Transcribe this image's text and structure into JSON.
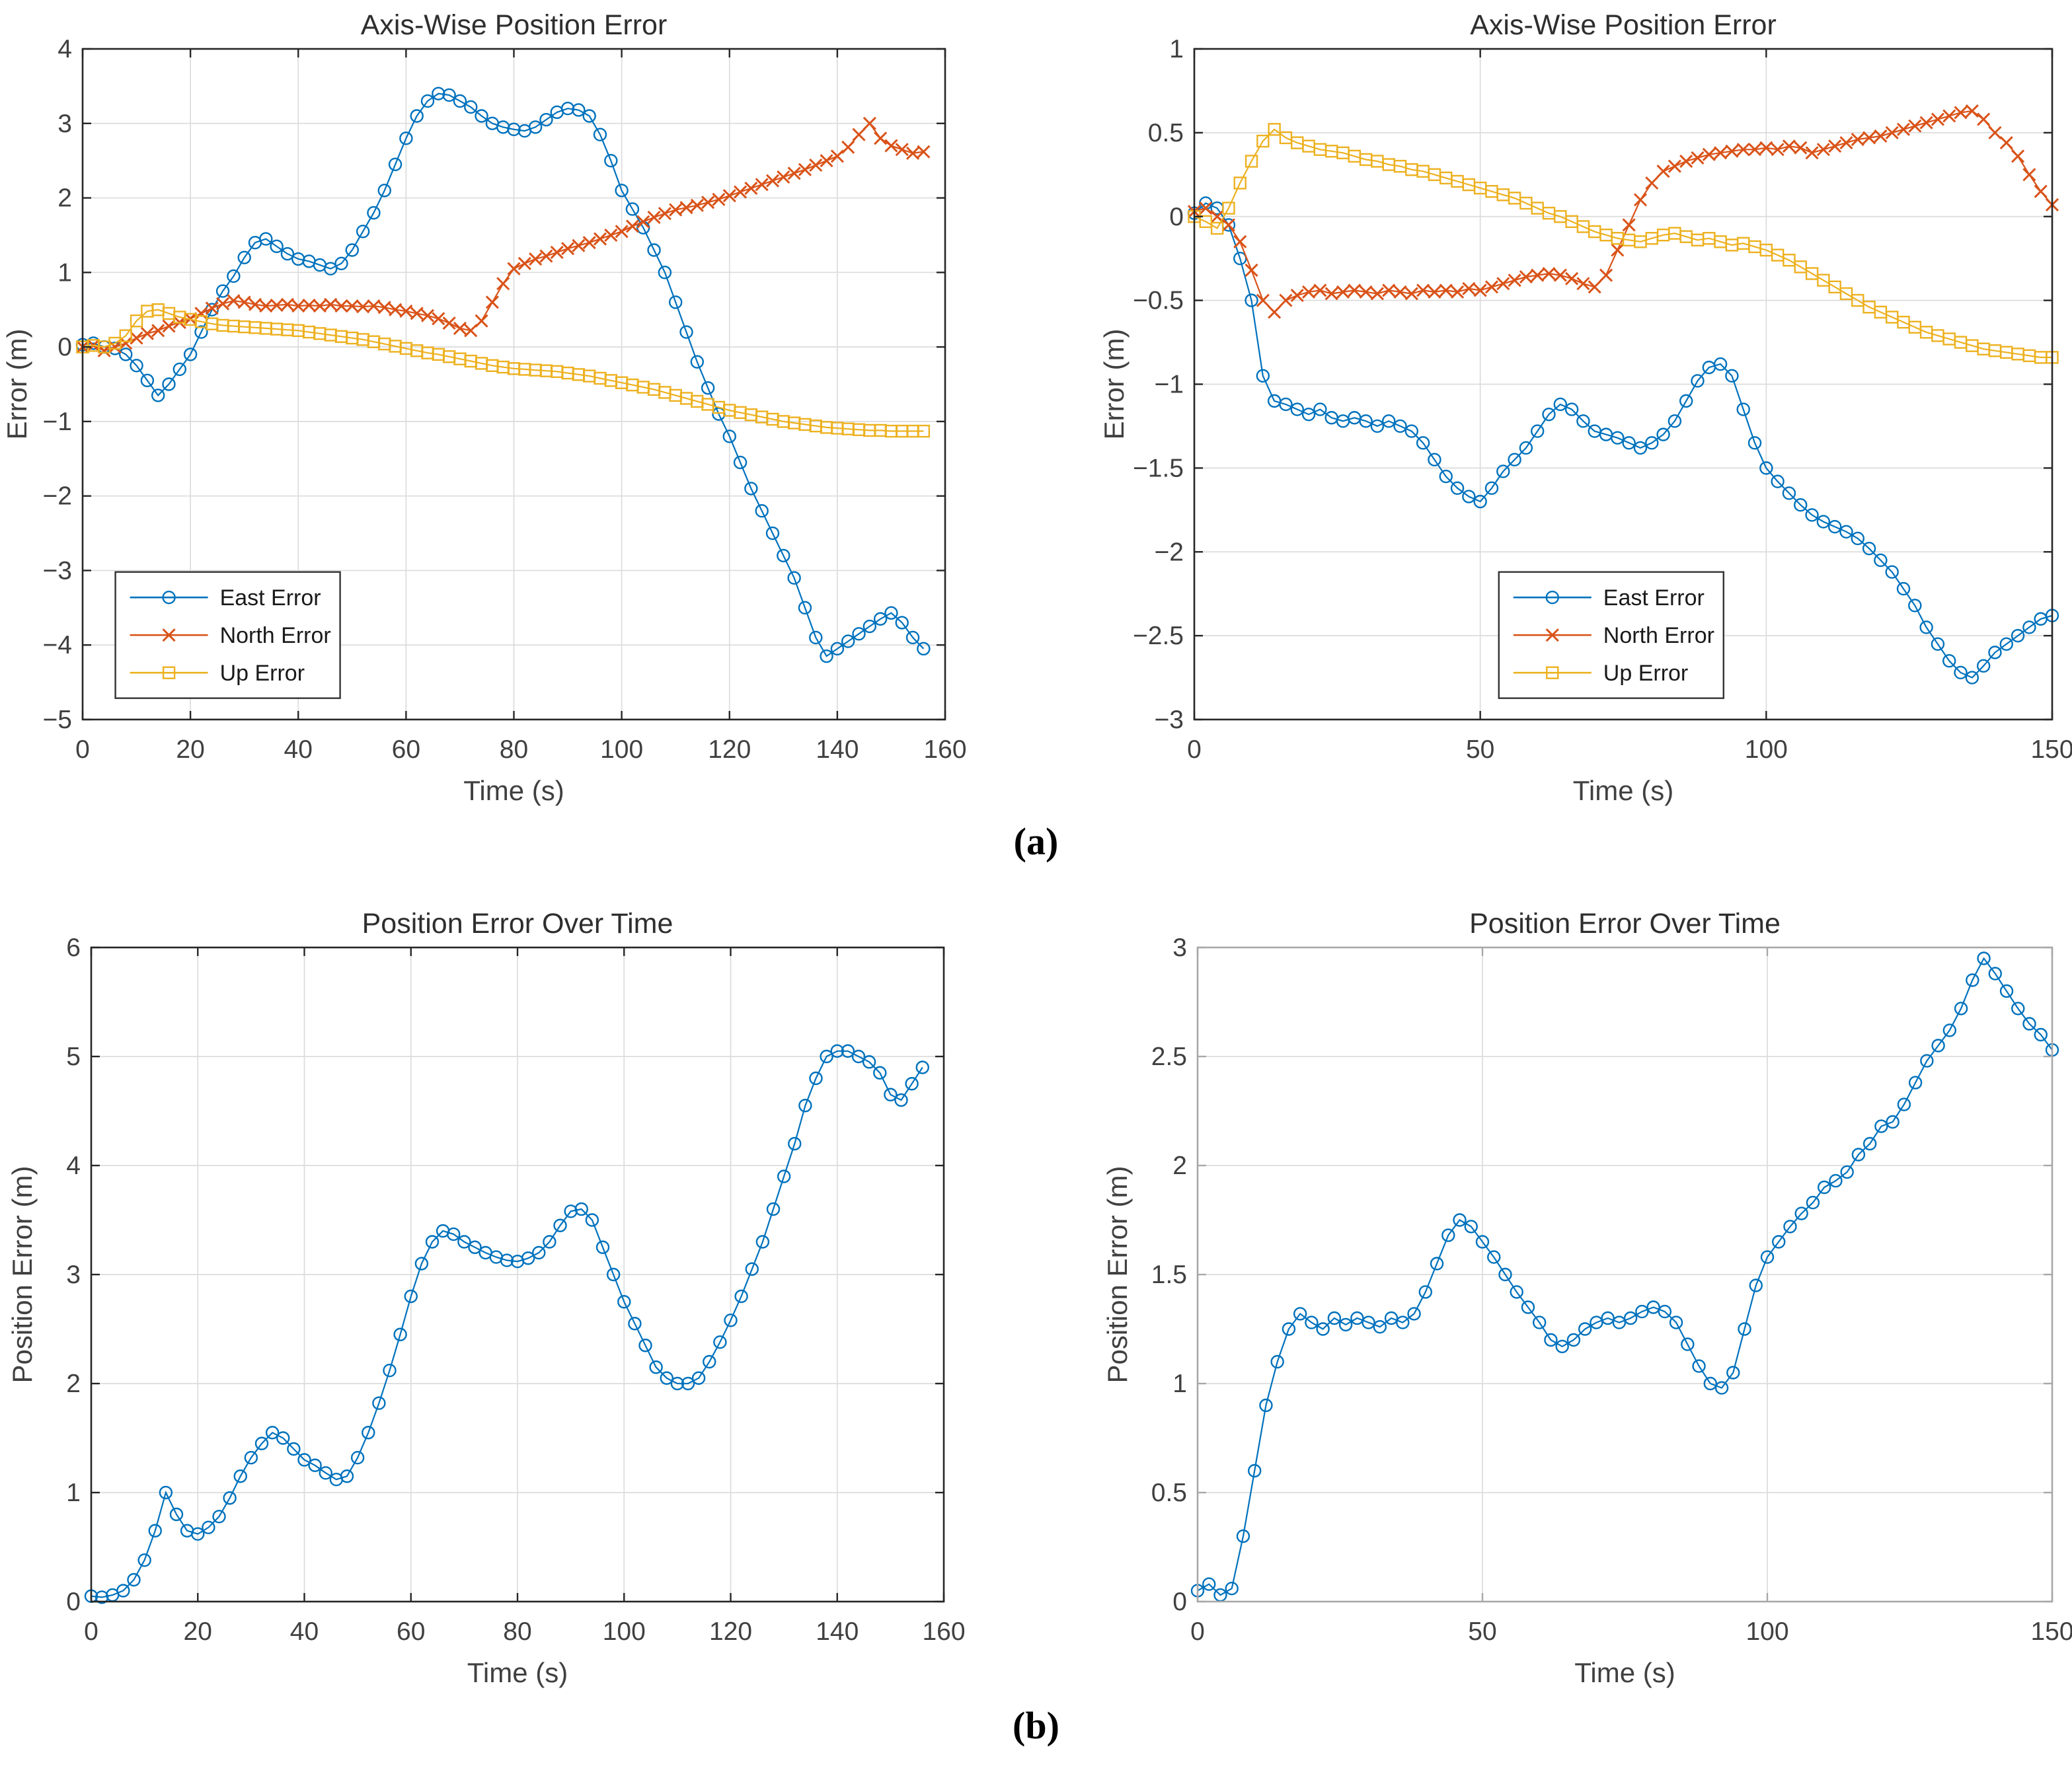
{
  "page": {
    "background": "#ffffff"
  },
  "panels": {
    "a_label": "(a)",
    "b_label": "(b)"
  },
  "palette": {
    "east": "#0072BD",
    "north": "#D95319",
    "up": "#EDB120",
    "grid": "#dcdcdc",
    "axis_dark": "#262626",
    "axis_gray": "#a8a8a8",
    "tick_text": "#404040",
    "title_text": "#2e2e2e",
    "legend_border": "#333333"
  },
  "chart_data": [
    {
      "id": "axiswise-left",
      "type": "line",
      "title": "Axis-Wise Position Error",
      "xlabel": "Time (s)",
      "ylabel": "Error (m)",
      "xlim": [
        0,
        160
      ],
      "ylim": [
        -5,
        4
      ],
      "xticks": [
        0,
        20,
        40,
        60,
        80,
        100,
        120,
        140,
        160
      ],
      "yticks": [
        -5,
        -4,
        -3,
        -2,
        -1,
        0,
        1,
        2,
        3,
        4
      ],
      "grid": true,
      "axis_style": "dark",
      "legend": {
        "show": true,
        "position": "lower-left"
      },
      "x": [
        0,
        2,
        4,
        6,
        8,
        10,
        12,
        14,
        16,
        18,
        20,
        22,
        24,
        26,
        28,
        30,
        32,
        34,
        36,
        38,
        40,
        42,
        44,
        46,
        48,
        50,
        52,
        54,
        56,
        58,
        60,
        62,
        64,
        66,
        68,
        70,
        72,
        74,
        76,
        78,
        80,
        82,
        84,
        86,
        88,
        90,
        92,
        94,
        96,
        98,
        100,
        102,
        104,
        106,
        108,
        110,
        112,
        114,
        116,
        118,
        120,
        122,
        124,
        126,
        128,
        130,
        132,
        134,
        136,
        138,
        140,
        142,
        144,
        146,
        148,
        150,
        152,
        154,
        156
      ],
      "series": [
        {
          "name": "East Error",
          "color_key": "east",
          "marker": "circle",
          "y": [
            0.03,
            0.05,
            0.0,
            -0.02,
            -0.1,
            -0.25,
            -0.45,
            -0.65,
            -0.5,
            -0.3,
            -0.1,
            0.2,
            0.5,
            0.75,
            0.95,
            1.2,
            1.4,
            1.45,
            1.35,
            1.25,
            1.18,
            1.15,
            1.1,
            1.05,
            1.12,
            1.3,
            1.55,
            1.8,
            2.1,
            2.45,
            2.8,
            3.1,
            3.3,
            3.4,
            3.38,
            3.3,
            3.22,
            3.1,
            3.0,
            2.95,
            2.92,
            2.9,
            2.95,
            3.05,
            3.15,
            3.2,
            3.18,
            3.1,
            2.85,
            2.5,
            2.1,
            1.85,
            1.6,
            1.3,
            1.0,
            0.6,
            0.2,
            -0.2,
            -0.55,
            -0.9,
            -1.2,
            -1.55,
            -1.9,
            -2.2,
            -2.5,
            -2.8,
            -3.1,
            -3.5,
            -3.9,
            -4.15,
            -4.05,
            -3.95,
            -3.85,
            -3.75,
            -3.65,
            -3.57,
            -3.7,
            -3.9,
            -4.05
          ]
        },
        {
          "name": "North Error",
          "color_key": "north",
          "marker": "x",
          "y": [
            0.0,
            0.02,
            -0.05,
            0.0,
            0.05,
            0.12,
            0.18,
            0.22,
            0.28,
            0.33,
            0.38,
            0.45,
            0.52,
            0.58,
            0.62,
            0.6,
            0.57,
            0.55,
            0.56,
            0.57,
            0.55,
            0.56,
            0.55,
            0.57,
            0.55,
            0.55,
            0.54,
            0.55,
            0.53,
            0.5,
            0.48,
            0.45,
            0.42,
            0.38,
            0.32,
            0.25,
            0.22,
            0.35,
            0.6,
            0.85,
            1.05,
            1.12,
            1.18,
            1.22,
            1.27,
            1.32,
            1.36,
            1.4,
            1.45,
            1.5,
            1.55,
            1.62,
            1.68,
            1.74,
            1.79,
            1.84,
            1.87,
            1.9,
            1.94,
            1.98,
            2.03,
            2.08,
            2.13,
            2.18,
            2.23,
            2.28,
            2.33,
            2.38,
            2.44,
            2.5,
            2.56,
            2.68,
            2.85,
            3.0,
            2.8,
            2.7,
            2.65,
            2.6,
            2.62
          ]
        },
        {
          "name": "Up Error",
          "color_key": "up",
          "marker": "square",
          "y": [
            0.0,
            0.02,
            0.0,
            0.05,
            0.15,
            0.35,
            0.48,
            0.5,
            0.45,
            0.4,
            0.37,
            0.34,
            0.31,
            0.29,
            0.28,
            0.27,
            0.26,
            0.25,
            0.24,
            0.23,
            0.22,
            0.2,
            0.18,
            0.16,
            0.14,
            0.12,
            0.1,
            0.07,
            0.04,
            0.01,
            -0.02,
            -0.05,
            -0.08,
            -0.1,
            -0.13,
            -0.16,
            -0.19,
            -0.22,
            -0.25,
            -0.27,
            -0.29,
            -0.3,
            -0.31,
            -0.32,
            -0.33,
            -0.35,
            -0.37,
            -0.39,
            -0.42,
            -0.45,
            -0.48,
            -0.51,
            -0.54,
            -0.57,
            -0.61,
            -0.65,
            -0.69,
            -0.73,
            -0.77,
            -0.81,
            -0.85,
            -0.88,
            -0.91,
            -0.94,
            -0.97,
            -1.0,
            -1.02,
            -1.04,
            -1.06,
            -1.08,
            -1.09,
            -1.1,
            -1.11,
            -1.12,
            -1.12,
            -1.13,
            -1.13,
            -1.13,
            -1.13
          ]
        }
      ]
    },
    {
      "id": "axiswise-right",
      "type": "line",
      "title": "Axis-Wise Position Error",
      "xlabel": "Time (s)",
      "ylabel": "Error (m)",
      "xlim": [
        0,
        150
      ],
      "ylim": [
        -3,
        1
      ],
      "xticks": [
        0,
        50,
        100,
        150
      ],
      "yticks": [
        -3,
        -2.5,
        -2,
        -1.5,
        -1,
        -0.5,
        0,
        0.5,
        1
      ],
      "grid": true,
      "axis_style": "dark",
      "legend": {
        "show": true,
        "position": "lower-center"
      },
      "x": [
        0,
        2,
        4,
        6,
        8,
        10,
        12,
        14,
        16,
        18,
        20,
        22,
        24,
        26,
        28,
        30,
        32,
        34,
        36,
        38,
        40,
        42,
        44,
        46,
        48,
        50,
        52,
        54,
        56,
        58,
        60,
        62,
        64,
        66,
        68,
        70,
        72,
        74,
        76,
        78,
        80,
        82,
        84,
        86,
        88,
        90,
        92,
        94,
        96,
        98,
        100,
        102,
        104,
        106,
        108,
        110,
        112,
        114,
        116,
        118,
        120,
        122,
        124,
        126,
        128,
        130,
        132,
        134,
        136,
        138,
        140,
        142,
        144,
        146,
        148,
        150
      ],
      "series": [
        {
          "name": "East Error",
          "color_key": "east",
          "marker": "circle",
          "y": [
            0.02,
            0.08,
            0.05,
            -0.05,
            -0.25,
            -0.5,
            -0.95,
            -1.1,
            -1.12,
            -1.15,
            -1.18,
            -1.15,
            -1.2,
            -1.22,
            -1.2,
            -1.22,
            -1.25,
            -1.22,
            -1.25,
            -1.28,
            -1.35,
            -1.45,
            -1.55,
            -1.62,
            -1.67,
            -1.7,
            -1.62,
            -1.52,
            -1.45,
            -1.38,
            -1.28,
            -1.18,
            -1.12,
            -1.15,
            -1.22,
            -1.28,
            -1.3,
            -1.32,
            -1.35,
            -1.38,
            -1.35,
            -1.3,
            -1.22,
            -1.1,
            -0.98,
            -0.9,
            -0.88,
            -0.95,
            -1.15,
            -1.35,
            -1.5,
            -1.58,
            -1.65,
            -1.72,
            -1.78,
            -1.82,
            -1.85,
            -1.88,
            -1.92,
            -1.98,
            -2.05,
            -2.12,
            -2.22,
            -2.32,
            -2.45,
            -2.55,
            -2.65,
            -2.72,
            -2.75,
            -2.68,
            -2.6,
            -2.55,
            -2.5,
            -2.45,
            -2.4,
            -2.38
          ]
        },
        {
          "name": "North Error",
          "color_key": "north",
          "marker": "x",
          "y": [
            0.03,
            0.05,
            0.0,
            -0.05,
            -0.15,
            -0.32,
            -0.5,
            -0.57,
            -0.5,
            -0.47,
            -0.45,
            -0.44,
            -0.46,
            -0.45,
            -0.44,
            -0.45,
            -0.46,
            -0.44,
            -0.45,
            -0.46,
            -0.44,
            -0.45,
            -0.44,
            -0.45,
            -0.43,
            -0.44,
            -0.42,
            -0.4,
            -0.38,
            -0.36,
            -0.35,
            -0.34,
            -0.35,
            -0.37,
            -0.4,
            -0.42,
            -0.35,
            -0.2,
            -0.05,
            0.1,
            0.2,
            0.27,
            0.3,
            0.33,
            0.35,
            0.37,
            0.38,
            0.39,
            0.4,
            0.4,
            0.41,
            0.4,
            0.42,
            0.41,
            0.38,
            0.4,
            0.42,
            0.44,
            0.46,
            0.47,
            0.48,
            0.5,
            0.52,
            0.54,
            0.56,
            0.58,
            0.6,
            0.62,
            0.63,
            0.58,
            0.5,
            0.44,
            0.36,
            0.25,
            0.15,
            0.07
          ]
        },
        {
          "name": "Up Error",
          "color_key": "up",
          "marker": "square",
          "y": [
            0.0,
            -0.03,
            -0.07,
            0.05,
            0.2,
            0.33,
            0.45,
            0.52,
            0.47,
            0.44,
            0.42,
            0.4,
            0.39,
            0.38,
            0.36,
            0.34,
            0.33,
            0.31,
            0.3,
            0.28,
            0.27,
            0.25,
            0.23,
            0.21,
            0.19,
            0.17,
            0.15,
            0.13,
            0.11,
            0.08,
            0.05,
            0.02,
            0.0,
            -0.03,
            -0.06,
            -0.09,
            -0.11,
            -0.13,
            -0.14,
            -0.15,
            -0.13,
            -0.11,
            -0.1,
            -0.12,
            -0.14,
            -0.13,
            -0.15,
            -0.17,
            -0.16,
            -0.18,
            -0.2,
            -0.23,
            -0.26,
            -0.3,
            -0.34,
            -0.38,
            -0.42,
            -0.46,
            -0.5,
            -0.54,
            -0.57,
            -0.6,
            -0.63,
            -0.66,
            -0.69,
            -0.71,
            -0.73,
            -0.75,
            -0.77,
            -0.79,
            -0.8,
            -0.81,
            -0.82,
            -0.83,
            -0.84,
            -0.84
          ]
        }
      ]
    },
    {
      "id": "poserr-left",
      "type": "line",
      "title": "Position Error Over Time",
      "xlabel": "Time (s)",
      "ylabel": "Position Error (m)",
      "xlim": [
        0,
        160
      ],
      "ylim": [
        0,
        6
      ],
      "xticks": [
        0,
        20,
        40,
        60,
        80,
        100,
        120,
        140,
        160
      ],
      "yticks": [
        0,
        1,
        2,
        3,
        4,
        5,
        6
      ],
      "grid": true,
      "axis_style": "dark",
      "legend": {
        "show": false,
        "position": "none"
      },
      "x": [
        0,
        2,
        4,
        6,
        8,
        10,
        12,
        14,
        16,
        18,
        20,
        22,
        24,
        26,
        28,
        30,
        32,
        34,
        36,
        38,
        40,
        42,
        44,
        46,
        48,
        50,
        52,
        54,
        56,
        58,
        60,
        62,
        64,
        66,
        68,
        70,
        72,
        74,
        76,
        78,
        80,
        82,
        84,
        86,
        88,
        90,
        92,
        94,
        96,
        98,
        100,
        102,
        104,
        106,
        108,
        110,
        112,
        114,
        116,
        118,
        120,
        122,
        124,
        126,
        128,
        130,
        132,
        134,
        136,
        138,
        140,
        142,
        144,
        146,
        148,
        150,
        152,
        154,
        156
      ],
      "series": [
        {
          "name": "Position Error",
          "color_key": "east",
          "marker": "circle",
          "y": [
            0.05,
            0.04,
            0.06,
            0.1,
            0.2,
            0.38,
            0.65,
            1.0,
            0.8,
            0.65,
            0.62,
            0.68,
            0.78,
            0.95,
            1.15,
            1.32,
            1.45,
            1.55,
            1.5,
            1.4,
            1.3,
            1.25,
            1.18,
            1.12,
            1.15,
            1.32,
            1.55,
            1.82,
            2.12,
            2.45,
            2.8,
            3.1,
            3.3,
            3.4,
            3.37,
            3.3,
            3.25,
            3.2,
            3.16,
            3.13,
            3.12,
            3.15,
            3.2,
            3.3,
            3.45,
            3.58,
            3.6,
            3.5,
            3.25,
            3.0,
            2.75,
            2.55,
            2.35,
            2.15,
            2.05,
            2.0,
            2.0,
            2.05,
            2.2,
            2.38,
            2.58,
            2.8,
            3.05,
            3.3,
            3.6,
            3.9,
            4.2,
            4.55,
            4.8,
            5.0,
            5.05,
            5.05,
            5.0,
            4.95,
            4.85,
            4.65,
            4.6,
            4.75,
            4.9
          ]
        }
      ]
    },
    {
      "id": "poserr-right",
      "type": "line",
      "title": "Position Error Over Time",
      "xlabel": "Time (s)",
      "ylabel": "Position Error (m)",
      "xlim": [
        0,
        150
      ],
      "ylim": [
        0,
        3
      ],
      "xticks": [
        0,
        50,
        100,
        150
      ],
      "yticks": [
        0,
        0.5,
        1,
        1.5,
        2,
        2.5,
        3
      ],
      "grid": true,
      "axis_style": "gray",
      "legend": {
        "show": false,
        "position": "none"
      },
      "x": [
        0,
        2,
        4,
        6,
        8,
        10,
        12,
        14,
        16,
        18,
        20,
        22,
        24,
        26,
        28,
        30,
        32,
        34,
        36,
        38,
        40,
        42,
        44,
        46,
        48,
        50,
        52,
        54,
        56,
        58,
        60,
        62,
        64,
        66,
        68,
        70,
        72,
        74,
        76,
        78,
        80,
        82,
        84,
        86,
        88,
        90,
        92,
        94,
        96,
        98,
        100,
        102,
        104,
        106,
        108,
        110,
        112,
        114,
        116,
        118,
        120,
        122,
        124,
        126,
        128,
        130,
        132,
        134,
        136,
        138,
        140,
        142,
        144,
        146,
        148,
        150
      ],
      "series": [
        {
          "name": "Position Error",
          "color_key": "east",
          "marker": "circle",
          "y": [
            0.05,
            0.08,
            0.03,
            0.06,
            0.3,
            0.6,
            0.9,
            1.1,
            1.25,
            1.32,
            1.28,
            1.25,
            1.3,
            1.27,
            1.3,
            1.28,
            1.26,
            1.3,
            1.28,
            1.32,
            1.42,
            1.55,
            1.68,
            1.75,
            1.72,
            1.65,
            1.58,
            1.5,
            1.42,
            1.35,
            1.28,
            1.2,
            1.17,
            1.2,
            1.25,
            1.28,
            1.3,
            1.28,
            1.3,
            1.33,
            1.35,
            1.33,
            1.28,
            1.18,
            1.08,
            1.0,
            0.98,
            1.05,
            1.25,
            1.45,
            1.58,
            1.65,
            1.72,
            1.78,
            1.83,
            1.9,
            1.93,
            1.97,
            2.05,
            2.1,
            2.18,
            2.2,
            2.28,
            2.38,
            2.48,
            2.55,
            2.62,
            2.72,
            2.85,
            2.95,
            2.88,
            2.8,
            2.72,
            2.65,
            2.6,
            2.53
          ]
        }
      ]
    }
  ]
}
